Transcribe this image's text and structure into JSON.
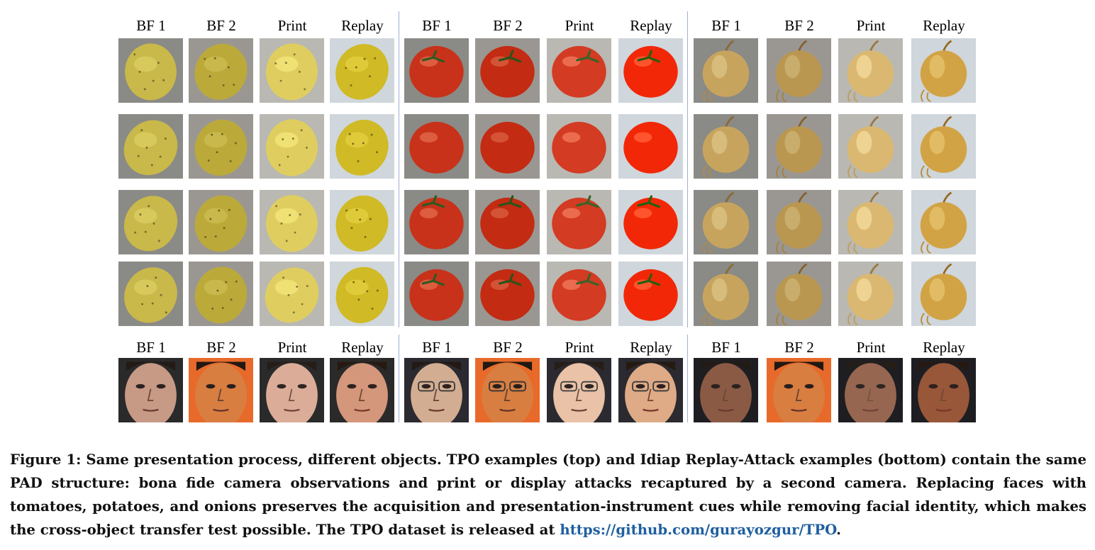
{
  "column_headers": [
    "BF 1",
    "BF 2",
    "Print",
    "Replay"
  ],
  "object_groups": [
    "potato",
    "tomato",
    "onion"
  ],
  "face_subjects": [
    "subject-1",
    "subject-2",
    "subject-3"
  ],
  "conditions": {
    "BF 1": {
      "variant": "bona-fide"
    },
    "BF 2": {
      "variant": "bona-fide-warm"
    },
    "Print": {
      "variant": "print-attack"
    },
    "Replay": {
      "variant": "replay-attack"
    }
  },
  "colors": {
    "potato": "#c9b84a",
    "tomato": "#c8321a",
    "onion": "#c7a45e",
    "separator": "#9db0d3",
    "link": "#1f5fa0"
  },
  "caption": {
    "text": "Figure 1: Same presentation process, different objects. TPO examples (top) and Idiap Replay-Attack examples (bottom) contain the same PAD structure: bona fide camera observations and print or display attacks recaptured by a second camera. Replacing faces with tomatoes, potatoes, and onions preserves the acquisition and presentation-instrument cues while removing facial identity, which makes the cross-object transfer test possible. The TPO dataset is released at",
    "link": "https://github.com/gurayozgur/TPO",
    "end": "."
  }
}
